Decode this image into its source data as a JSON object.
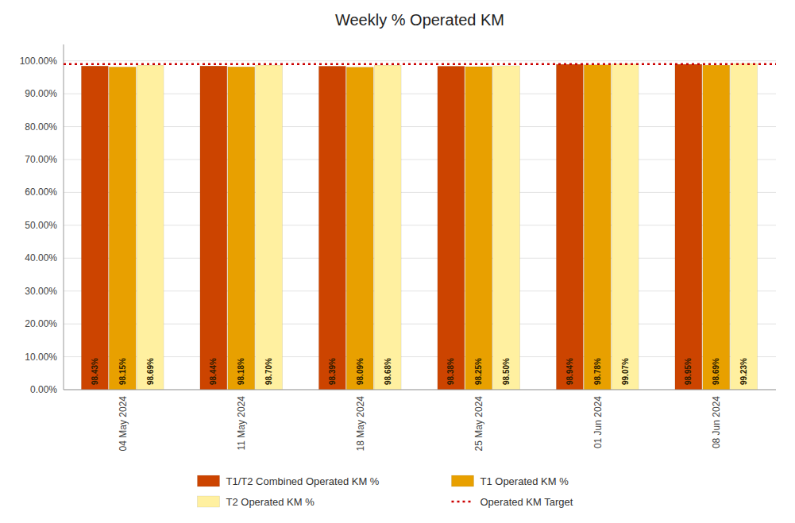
{
  "chart_data": {
    "type": "bar",
    "title": "Weekly % Operated KM",
    "categories": [
      "04 May 2024",
      "11 May 2024",
      "18 May 2024",
      "25 May 2024",
      "01 Jun 2024",
      "08 Jun 2024"
    ],
    "series": [
      {
        "name": "T1/T2 Combined Operated KM %",
        "color": "#CC4400",
        "values": [
          98.43,
          98.44,
          98.39,
          98.38,
          98.94,
          98.95
        ],
        "value_labels": [
          "98.43%",
          "98.44%",
          "98.39%",
          "98.38%",
          "98.94%",
          "98.95%"
        ]
      },
      {
        "name": "T1 Operated KM %",
        "color": "#E8A000",
        "values": [
          98.15,
          98.18,
          98.09,
          98.25,
          98.78,
          98.69
        ],
        "value_labels": [
          "98.15%",
          "98.18%",
          "98.09%",
          "98.25%",
          "98.78%",
          "98.69%"
        ]
      },
      {
        "name": "T2 Operated KM %",
        "color": "#FFF0A0",
        "values": [
          98.69,
          98.7,
          98.68,
          98.5,
          99.07,
          99.23
        ],
        "value_labels": [
          "98.69%",
          "98.70%",
          "98.68%",
          "98.50%",
          "99.07%",
          "99.23%"
        ]
      }
    ],
    "target": {
      "name": "Operated KM Target",
      "value": 99.0,
      "color": "#CC0000",
      "line_style": "dotted"
    },
    "ylim": [
      0,
      105
    ],
    "yticks": [
      {
        "value": 0,
        "label": "0.00%"
      },
      {
        "value": 10,
        "label": "10.00%"
      },
      {
        "value": 20,
        "label": "20.00%"
      },
      {
        "value": 30,
        "label": "30.00%"
      },
      {
        "value": 40,
        "label": "40.00%"
      },
      {
        "value": 50,
        "label": "50.00%"
      },
      {
        "value": 60,
        "label": "60.00%"
      },
      {
        "value": 70,
        "label": "70.00%"
      },
      {
        "value": 80,
        "label": "80.00%"
      },
      {
        "value": 90,
        "label": "90.00%"
      },
      {
        "value": 100,
        "label": "100.00%"
      }
    ],
    "grid": true,
    "data_labels": true,
    "legend": "bottom"
  }
}
